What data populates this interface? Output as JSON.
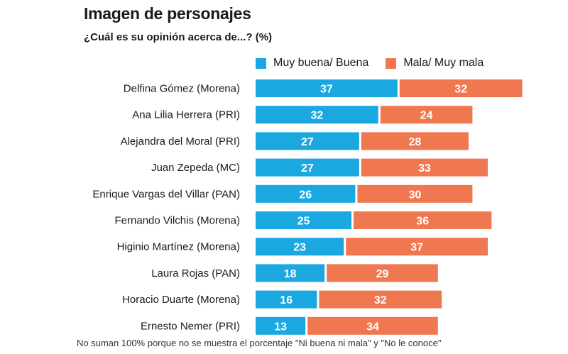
{
  "chart_data": {
    "type": "bar",
    "orientation": "horizontal",
    "stacked": true,
    "title": "Imagen de personajes",
    "subtitle": "¿Cuál es su opinión acerca de...? (%)",
    "categories": [
      "Delfina Gómez (Morena)",
      "Ana Lilia Herrera (PRI)",
      "Alejandra del Moral (PRI)",
      "Juan Zepeda (MC)",
      "Enrique Vargas del Villar (PAN)",
      "Fernando Vilchis (Morena)",
      "Higinio Martínez (Morena)",
      "Laura Rojas (PAN)",
      "Horacio Duarte (Morena)",
      "Ernesto Nemer (PRI)"
    ],
    "series": [
      {
        "name": "Muy buena/ Buena",
        "color": "#1ba8e0",
        "values": [
          37,
          32,
          27,
          27,
          26,
          25,
          23,
          18,
          16,
          13
        ]
      },
      {
        "name": "Mala/ Muy mala",
        "color": "#f07850",
        "values": [
          32,
          24,
          28,
          33,
          30,
          36,
          37,
          29,
          32,
          34
        ]
      }
    ],
    "legend_position": "top",
    "grid": false,
    "data_labels": true,
    "note": "No suman 100% porque no se muestra el porcentaje \"Ni buena ni mala\" y \"No le conoce\""
  }
}
